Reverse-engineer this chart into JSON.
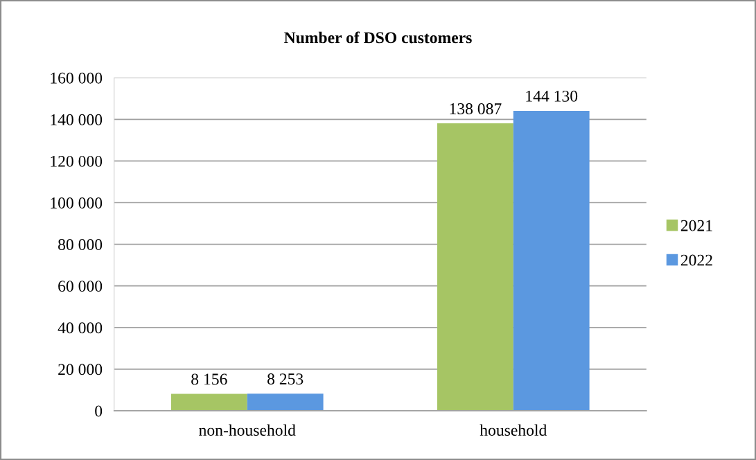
{
  "chart_data": {
    "type": "bar",
    "title": "Number of DSO customers",
    "categories": [
      "non-household",
      "household"
    ],
    "series": [
      {
        "name": "2021",
        "color": "#a6c564",
        "values": [
          8156,
          138087
        ],
        "value_labels": [
          "8 156",
          "138 087"
        ]
      },
      {
        "name": "2022",
        "color": "#5b98e0",
        "values": [
          8253,
          144130
        ],
        "value_labels": [
          "8 253",
          "144 130"
        ]
      }
    ],
    "ylim": [
      0,
      160000
    ],
    "yticks": [
      {
        "value": 0,
        "label": "0"
      },
      {
        "value": 20000,
        "label": "20 000"
      },
      {
        "value": 40000,
        "label": "40 000"
      },
      {
        "value": 60000,
        "label": "60 000"
      },
      {
        "value": 80000,
        "label": "80 000"
      },
      {
        "value": 100000,
        "label": "100 000"
      },
      {
        "value": 120000,
        "label": "120 000"
      },
      {
        "value": 140000,
        "label": "140 000"
      },
      {
        "value": 160000,
        "label": "160 000"
      }
    ],
    "grid": "y",
    "legend": "right"
  }
}
